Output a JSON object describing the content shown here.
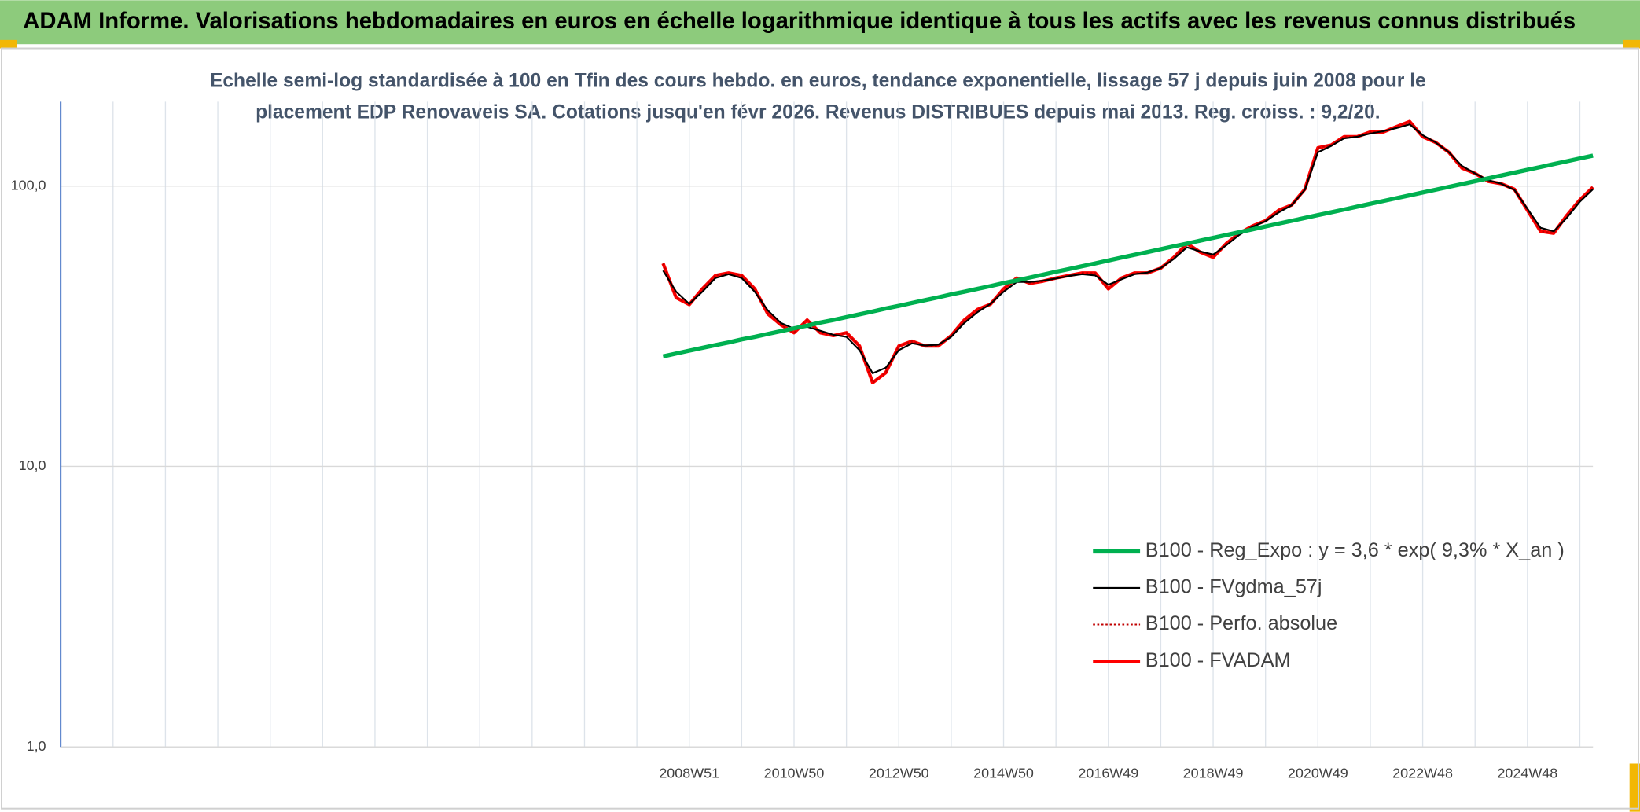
{
  "chart_data": {
    "type": "line",
    "title": "ADAM Informe. Valorisations hebdomadaires en euros en échelle logarithmique identique à tous les actifs avec les revenus connus distribués",
    "subtitle": [
      "Echelle semi-log standardisée à 100 en Tfin des cours hebdo. en euros, tendance exponentielle, lissage 57 j depuis juin 2008 pour le",
      "placement EDP Renovaveis SA. Cotations jusqu'en févr 2026. Revenus DISTRIBUES depuis mai 2013. Reg. croiss. : 9,2/20."
    ],
    "log_y": true,
    "grid": true,
    "legend": "lower right",
    "ylim": [
      1,
      200
    ],
    "yticks": [
      {
        "value": 1,
        "label": "1,0"
      },
      {
        "value": 10,
        "label": "10,0"
      },
      {
        "value": 100,
        "label": "100,0"
      }
    ],
    "categories": [
      null,
      null,
      null,
      null,
      null,
      null,
      null,
      null,
      null,
      null,
      null,
      null,
      null,
      null,
      null,
      null,
      null,
      null,
      null,
      null,
      null,
      null,
      null,
      null,
      null,
      null,
      null,
      null,
      null,
      null,
      null,
      null,
      null,
      null,
      null,
      null,
      null,
      null,
      null,
      null,
      null,
      null,
      null,
      null,
      null,
      null,
      null,
      null,
      "2008W51",
      null,
      null,
      null,
      null,
      null,
      null,
      null,
      "2010W50",
      null,
      null,
      null,
      null,
      null,
      null,
      null,
      "2012W50",
      null,
      null,
      null,
      null,
      null,
      null,
      null,
      "2014W50",
      null,
      null,
      null,
      null,
      null,
      null,
      null,
      "2016W49",
      null,
      null,
      null,
      null,
      null,
      null,
      null,
      "2018W49",
      null,
      null,
      null,
      null,
      null,
      null,
      null,
      "2020W49",
      null,
      null,
      null,
      null,
      null,
      null,
      null,
      "2022W48",
      null,
      null,
      null,
      null,
      null,
      null,
      null,
      "2024W48",
      null,
      null,
      null,
      null,
      null
    ],
    "series": [
      {
        "name": "B100 - FVADAM",
        "color": "#ff0000",
        "style": "solid",
        "width": 3.2,
        "values": [
          null,
          null,
          null,
          null,
          null,
          null,
          null,
          null,
          null,
          null,
          null,
          null,
          null,
          null,
          null,
          null,
          null,
          null,
          null,
          null,
          null,
          null,
          null,
          null,
          null,
          null,
          null,
          null,
          null,
          null,
          null,
          null,
          null,
          null,
          null,
          null,
          null,
          null,
          null,
          null,
          null,
          null,
          null,
          null,
          null,
          null,
          53,
          40,
          37.8,
          43,
          48,
          49,
          48,
          43,
          35,
          32,
          30,
          33.3,
          30,
          29.3,
          30,
          26.9,
          19.9,
          21.6,
          26.9,
          28,
          26.9,
          26.9,
          29.3,
          33.3,
          36.3,
          37.9,
          43,
          47,
          45,
          45.8,
          47,
          48,
          49,
          49,
          43,
          47,
          49,
          49,
          51,
          55.7,
          62.4,
          58.2,
          55.7,
          62.4,
          67.9,
          72.1,
          75.3,
          82,
          85.7,
          97.5,
          137,
          140,
          150,
          150,
          156,
          156,
          163,
          170,
          150,
          143,
          132,
          116,
          111,
          104,
          102,
          97.5,
          82,
          69,
          67.9,
          78.6,
          89.4,
          99.1
        ]
      },
      {
        "name": "B100 - Perfo. absolue",
        "color": "#c00000",
        "style": "dotted",
        "width": 1.5,
        "values": [
          null,
          null,
          null,
          null,
          null,
          null,
          null,
          null,
          null,
          null,
          null,
          null,
          null,
          null,
          null,
          null,
          null,
          null,
          null,
          null,
          null,
          null,
          null,
          null,
          null,
          null,
          null,
          null,
          null,
          null,
          null,
          null,
          null,
          null,
          null,
          null,
          null,
          null,
          null,
          null,
          null,
          null,
          null,
          null,
          null,
          null,
          53,
          40,
          37.8,
          43,
          48,
          49,
          48,
          43,
          35,
          32,
          30,
          33.3,
          30,
          29.3,
          30,
          26.9,
          19.9,
          21.6,
          26.9,
          28,
          26.9,
          26.9,
          29.3,
          33.3,
          36.3,
          37.9,
          43,
          47,
          45,
          45.8,
          47,
          48,
          49,
          49,
          43,
          47,
          49,
          49,
          51,
          55.7,
          62.4,
          58.2,
          55.7,
          62.4,
          67.9,
          72.1,
          75.3,
          82,
          85.7,
          97.5,
          137,
          140,
          150,
          150,
          156,
          156,
          163,
          170,
          150,
          143,
          132,
          116,
          111,
          104,
          102,
          97.5,
          82,
          69,
          67.9,
          78.6,
          89.4,
          99.1
        ]
      },
      {
        "name": "B100 - FVgdma_57j",
        "color": "#000000",
        "style": "solid",
        "width": 1.6,
        "values": [
          null,
          null,
          null,
          null,
          null,
          null,
          null,
          null,
          null,
          null,
          null,
          null,
          null,
          null,
          null,
          null,
          null,
          null,
          null,
          null,
          null,
          null,
          null,
          null,
          null,
          null,
          null,
          null,
          null,
          null,
          null,
          null,
          null,
          null,
          null,
          null,
          null,
          null,
          null,
          null,
          null,
          null,
          null,
          null,
          null,
          null,
          50,
          42,
          38,
          42,
          47,
          48.5,
          47,
          42,
          36,
          32.5,
          31,
          31.5,
          30.5,
          29.5,
          29,
          26,
          21.5,
          22.5,
          26,
          27.5,
          27,
          27.2,
          29,
          32.5,
          35.5,
          38,
          42,
          45.5,
          45.5,
          46,
          46.8,
          47.8,
          48.5,
          48,
          44.5,
          46.5,
          48.5,
          49.2,
          51,
          55,
          60.5,
          58.5,
          57,
          61.5,
          67,
          71.5,
          75,
          80.5,
          85.5,
          97,
          132,
          139,
          148,
          150,
          154,
          157,
          161,
          166,
          152,
          143,
          132,
          118,
          111,
          105,
          102,
          97,
          83,
          71,
          69,
          77,
          88,
          97.5
        ]
      },
      {
        "name": "B100 - Reg_Expo : y = 3,6 * exp( 9,3% *  X_an )",
        "color": "#00b050",
        "style": "solid",
        "width": 4,
        "values": [
          null,
          null,
          null,
          null,
          null,
          null,
          null,
          null,
          null,
          null,
          null,
          null,
          null,
          null,
          null,
          null,
          null,
          null,
          null,
          null,
          null,
          null,
          null,
          null,
          null,
          null,
          null,
          null,
          null,
          null,
          null,
          null,
          null,
          null,
          null,
          null,
          null,
          null,
          null,
          null,
          null,
          null,
          null,
          null,
          null,
          null,
          24.7,
          25.3,
          25.9,
          26.5,
          27.1,
          27.7,
          28.4,
          29.0,
          29.7,
          30.4,
          31.1,
          31.8,
          32.6,
          33.3,
          34.1,
          34.9,
          35.7,
          36.6,
          37.4,
          38.3,
          39.2,
          40.1,
          41.1,
          42.0,
          43.0,
          44.0,
          45.1,
          46.1,
          47.2,
          48.3,
          49.5,
          50.6,
          51.8,
          53.0,
          54.3,
          55.6,
          56.9,
          58.2,
          59.6,
          61.0,
          62.4,
          63.9,
          65.4,
          66.9,
          68.5,
          70.1,
          71.8,
          73.5,
          75.2,
          77.0,
          78.8,
          80.6,
          82.5,
          84.5,
          86.5,
          88.5,
          90.6,
          92.7,
          94.9,
          97.1,
          99.4,
          101.7,
          104.1,
          106.6,
          109.1,
          111.7,
          114.3,
          117.0,
          119.8,
          122.6,
          125.5,
          128.4
        ]
      }
    ],
    "legend_order": [
      3,
      2,
      1,
      0
    ]
  }
}
